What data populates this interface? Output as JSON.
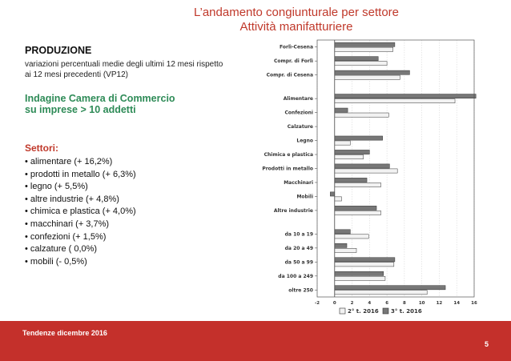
{
  "header": {
    "title_line1": "L’andamento congiunturale per settore",
    "title_line2": "Attività manifatturiere"
  },
  "intro": {
    "heading": "PRODUZIONE",
    "subheading": "variazioni percentuali medie degli ultimi 12 mesi rispetto ai 12 mesi precedenti (VP12)",
    "survey_line1": "Indagine Camera di Commercio",
    "survey_line2": "su imprese > 10 addetti"
  },
  "sectors": {
    "title": "Settori:",
    "items": [
      "alimentare (+ 16,2%)",
      "prodotti in metallo (+ 6,3%)",
      "legno (+ 5,5%)",
      "altre industrie (+ 4,8%)",
      "chimica e plastica (+ 4,0%)",
      "macchinari (+ 3,7%)",
      "confezioni (+ 1,5%)",
      "calzature ( 0,0%)",
      "mobili (- 0,5%)"
    ]
  },
  "footer": {
    "text": "Tendenze dicembre 2016",
    "page_number": "5"
  },
  "colors": {
    "accent": "#c0392b",
    "footer_bg": "#c4302b",
    "survey_green": "#2e8b57",
    "series_2016_2": "#f2f2f2",
    "series_2016_3": "#777777"
  },
  "chart_data": {
    "type": "bar",
    "orientation": "horizontal",
    "categories": [
      "Forlì-Cesena",
      "Compr. di Forlì",
      "Compr. di Cesena",
      "Alimentare",
      "Confezioni",
      "Calzature",
      "Legno",
      "Chimica e plastica",
      "Prodotti in metallo",
      "Macchinari",
      "Mobili",
      "Altre industrie",
      "da 10 a 19",
      "da 20 a 49",
      "da 50 a 99",
      "da 100 a 249",
      "oltre 250"
    ],
    "groups": [
      3,
      12
    ],
    "series": [
      {
        "name": "2° t. 2016",
        "values": [
          6.7,
          6.0,
          7.5,
          13.8,
          6.2,
          0.0,
          1.8,
          3.3,
          7.2,
          5.3,
          0.8,
          5.3,
          3.9,
          2.5,
          6.8,
          5.8,
          10.6
        ]
      },
      {
        "name": "3° t. 2016",
        "values": [
          6.9,
          5.0,
          8.6,
          16.2,
          1.5,
          0.0,
          5.5,
          4.0,
          6.3,
          3.7,
          -0.5,
          4.8,
          1.8,
          1.4,
          6.9,
          5.6,
          12.7
        ]
      }
    ],
    "xlim": [
      -2,
      16
    ],
    "xticks": [
      -2,
      0,
      2,
      4,
      6,
      8,
      10,
      12,
      14,
      16
    ],
    "grid": true,
    "legend": "bottom"
  }
}
